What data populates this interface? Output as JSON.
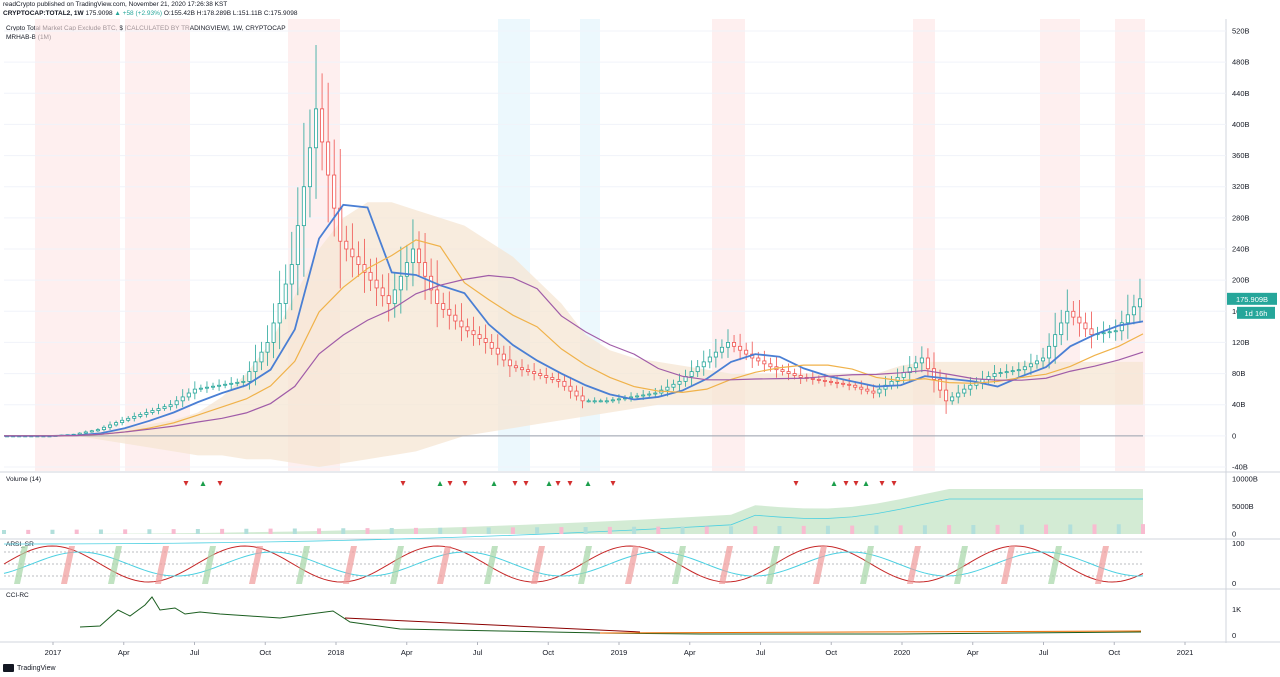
{
  "header": {
    "publisher_line": "readCrypto published on TradingView.com, November 21, 2020 17:26:38 KST",
    "symbol": "CRYPTOCAP:TOTAL2, 1W",
    "last": "175.9098",
    "change": "▲ +58 (+2.93%)",
    "ohlc": "O:155.42B H:178.289B L:151.11B C:175.9098"
  },
  "legend": {
    "title": "Crypto Total Market Cap Exclude BTC, $ [CALCULATED BY TRADINGVIEW], 1W, CRYPTOCAP",
    "indicator": "MRHAB-B (1M)"
  },
  "panes": {
    "volume_label": "Volume (14)",
    "rsi_label": "ARSI_SR",
    "cci_label": "CCI-RC"
  },
  "badges": {
    "price": "175.909B",
    "countdown": "1d 16h",
    "price_color": "#26a69a"
  },
  "brand": "TradingView",
  "colors": {
    "bull": "#26a69a",
    "bear": "#ef5350",
    "blue_line": "#4a7fd4",
    "orange_line": "#f0b24a",
    "purple_line": "#a05ca8",
    "cloud": "#f5e6d3"
  },
  "chart_data": [
    {
      "type": "line",
      "name": "price",
      "x": [
        "2016-12",
        "2017-01",
        "2017-02",
        "2017-03",
        "2017-04",
        "2017-05",
        "2017-06",
        "2017-07",
        "2017-08",
        "2017-09",
        "2017-10",
        "2017-11",
        "2017-12",
        "2018-01",
        "2018-02",
        "2018-03",
        "2018-04",
        "2018-05",
        "2018-06",
        "2018-07",
        "2018-08",
        "2018-09",
        "2018-10",
        "2018-11",
        "2018-12",
        "2019-01",
        "2019-02",
        "2019-03",
        "2019-04",
        "2019-05",
        "2019-06",
        "2019-07",
        "2019-08",
        "2019-09",
        "2019-10",
        "2019-11",
        "2019-12",
        "2020-01",
        "2020-02",
        "2020-03",
        "2020-04",
        "2020-05",
        "2020-06",
        "2020-07",
        "2020-08",
        "2020-09",
        "2020-10",
        "2020-11"
      ],
      "values": [
        0,
        0,
        0,
        2,
        8,
        20,
        30,
        40,
        60,
        65,
        70,
        120,
        220,
        420,
        250,
        210,
        170,
        240,
        170,
        140,
        120,
        90,
        80,
        70,
        45,
        45,
        50,
        55,
        70,
        95,
        120,
        100,
        85,
        75,
        70,
        65,
        55,
        75,
        100,
        45,
        65,
        80,
        85,
        100,
        160,
        130,
        135,
        176
      ],
      "ylim": [
        -40,
        520
      ],
      "y_ticks": [
        "520B",
        "480B",
        "440B",
        "400B",
        "360B",
        "320B",
        "280B",
        "240B",
        "200B",
        "160B",
        "120B",
        "80B",
        "40B",
        "0",
        "-40B"
      ],
      "x_ticks": [
        "2017",
        "Apr",
        "Jul",
        "Oct",
        "2018",
        "Apr",
        "Jul",
        "Oct",
        "2019",
        "Apr",
        "Jul",
        "Oct",
        "2020",
        "Apr",
        "Jul",
        "Oct",
        "2021"
      ]
    },
    {
      "type": "area",
      "name": "volume",
      "y_ticks": [
        "10000B",
        "5000B",
        "0"
      ]
    },
    {
      "type": "line",
      "name": "ARSI_SR",
      "y_ticks": [
        "100",
        "0"
      ]
    },
    {
      "type": "line",
      "name": "CCI-RC",
      "y_ticks": [
        "1K",
        "0"
      ]
    }
  ]
}
